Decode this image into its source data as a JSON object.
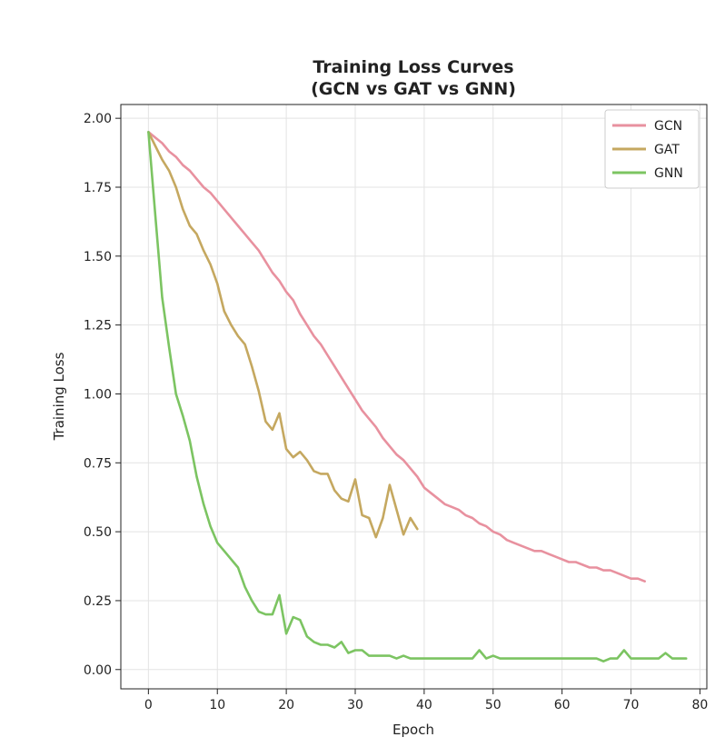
{
  "chart_data": {
    "type": "line",
    "title": "Training Loss Curves",
    "subtitle": "(GCN vs GAT vs GNN)",
    "xlabel": "Epoch",
    "ylabel": "Training Loss",
    "xlim": [
      -4,
      81
    ],
    "ylim": [
      -0.07,
      2.05
    ],
    "xticks": [
      0,
      10,
      20,
      30,
      40,
      50,
      60,
      70,
      80
    ],
    "yticks": [
      0.0,
      0.25,
      0.5,
      0.75,
      1.0,
      1.25,
      1.5,
      1.75,
      2.0
    ],
    "ytick_labels": [
      "0.00",
      "0.25",
      "0.50",
      "0.75",
      "1.00",
      "1.25",
      "1.50",
      "1.75",
      "2.00"
    ],
    "grid": true,
    "legend_position": "top-right",
    "series": [
      {
        "name": "GCN",
        "color": "#e8919f",
        "x": [
          0,
          1,
          2,
          3,
          4,
          5,
          6,
          7,
          8,
          9,
          10,
          11,
          12,
          13,
          14,
          15,
          16,
          17,
          18,
          19,
          20,
          21,
          22,
          23,
          24,
          25,
          26,
          27,
          28,
          29,
          30,
          31,
          32,
          33,
          34,
          35,
          36,
          37,
          38,
          39,
          40,
          41,
          42,
          43,
          44,
          45,
          46,
          47,
          48,
          49,
          50,
          51,
          52,
          53,
          54,
          55,
          56,
          57,
          58,
          59,
          60,
          61,
          62,
          63,
          64,
          65,
          66,
          67,
          68,
          69,
          70,
          71,
          72
        ],
        "values": [
          1.95,
          1.93,
          1.91,
          1.88,
          1.86,
          1.83,
          1.81,
          1.78,
          1.75,
          1.73,
          1.7,
          1.67,
          1.64,
          1.61,
          1.58,
          1.55,
          1.52,
          1.48,
          1.44,
          1.41,
          1.37,
          1.34,
          1.29,
          1.25,
          1.21,
          1.18,
          1.14,
          1.1,
          1.06,
          1.02,
          0.98,
          0.94,
          0.91,
          0.88,
          0.84,
          0.81,
          0.78,
          0.76,
          0.73,
          0.7,
          0.66,
          0.64,
          0.62,
          0.6,
          0.59,
          0.58,
          0.56,
          0.55,
          0.53,
          0.52,
          0.5,
          0.49,
          0.47,
          0.46,
          0.45,
          0.44,
          0.43,
          0.43,
          0.42,
          0.41,
          0.4,
          0.39,
          0.39,
          0.38,
          0.37,
          0.37,
          0.36,
          0.36,
          0.35,
          0.34,
          0.33,
          0.33,
          0.32
        ]
      },
      {
        "name": "GAT",
        "color": "#c5a860",
        "x": [
          0,
          1,
          2,
          3,
          4,
          5,
          6,
          7,
          8,
          9,
          10,
          11,
          12,
          13,
          14,
          15,
          16,
          17,
          18,
          19,
          20,
          21,
          22,
          23,
          24,
          25,
          26,
          27,
          28,
          29,
          30,
          31,
          32,
          33,
          34,
          35,
          36,
          37,
          38,
          39
        ],
        "values": [
          1.95,
          1.9,
          1.85,
          1.81,
          1.75,
          1.67,
          1.61,
          1.58,
          1.52,
          1.47,
          1.4,
          1.3,
          1.25,
          1.21,
          1.18,
          1.1,
          1.01,
          0.9,
          0.87,
          0.93,
          0.8,
          0.77,
          0.79,
          0.76,
          0.72,
          0.71,
          0.71,
          0.65,
          0.62,
          0.61,
          0.69,
          0.56,
          0.55,
          0.48,
          0.55,
          0.67,
          0.58,
          0.49,
          0.55,
          0.51
        ]
      },
      {
        "name": "GNN",
        "color": "#7cc462",
        "x": [
          0,
          1,
          2,
          3,
          4,
          5,
          6,
          7,
          8,
          9,
          10,
          11,
          12,
          13,
          14,
          15,
          16,
          17,
          18,
          19,
          20,
          21,
          22,
          23,
          24,
          25,
          26,
          27,
          28,
          29,
          30,
          31,
          32,
          33,
          34,
          35,
          36,
          37,
          38,
          39,
          40,
          41,
          42,
          43,
          44,
          45,
          46,
          47,
          48,
          49,
          50,
          51,
          52,
          53,
          54,
          55,
          56,
          57,
          58,
          59,
          60,
          61,
          62,
          63,
          64,
          65,
          66,
          67,
          68,
          69,
          70,
          71,
          72,
          73,
          74,
          75,
          76,
          77,
          78
        ],
        "values": [
          1.95,
          1.65,
          1.35,
          1.17,
          1.0,
          0.92,
          0.83,
          0.7,
          0.6,
          0.52,
          0.46,
          0.43,
          0.4,
          0.37,
          0.3,
          0.25,
          0.21,
          0.2,
          0.2,
          0.27,
          0.13,
          0.19,
          0.18,
          0.12,
          0.1,
          0.09,
          0.09,
          0.08,
          0.1,
          0.06,
          0.07,
          0.07,
          0.05,
          0.05,
          0.05,
          0.05,
          0.04,
          0.05,
          0.04,
          0.04,
          0.04,
          0.04,
          0.04,
          0.04,
          0.04,
          0.04,
          0.04,
          0.04,
          0.07,
          0.04,
          0.05,
          0.04,
          0.04,
          0.04,
          0.04,
          0.04,
          0.04,
          0.04,
          0.04,
          0.04,
          0.04,
          0.04,
          0.04,
          0.04,
          0.04,
          0.04,
          0.03,
          0.04,
          0.04,
          0.07,
          0.04,
          0.04,
          0.04,
          0.04,
          0.04,
          0.06,
          0.04,
          0.04,
          0.04
        ]
      }
    ]
  }
}
